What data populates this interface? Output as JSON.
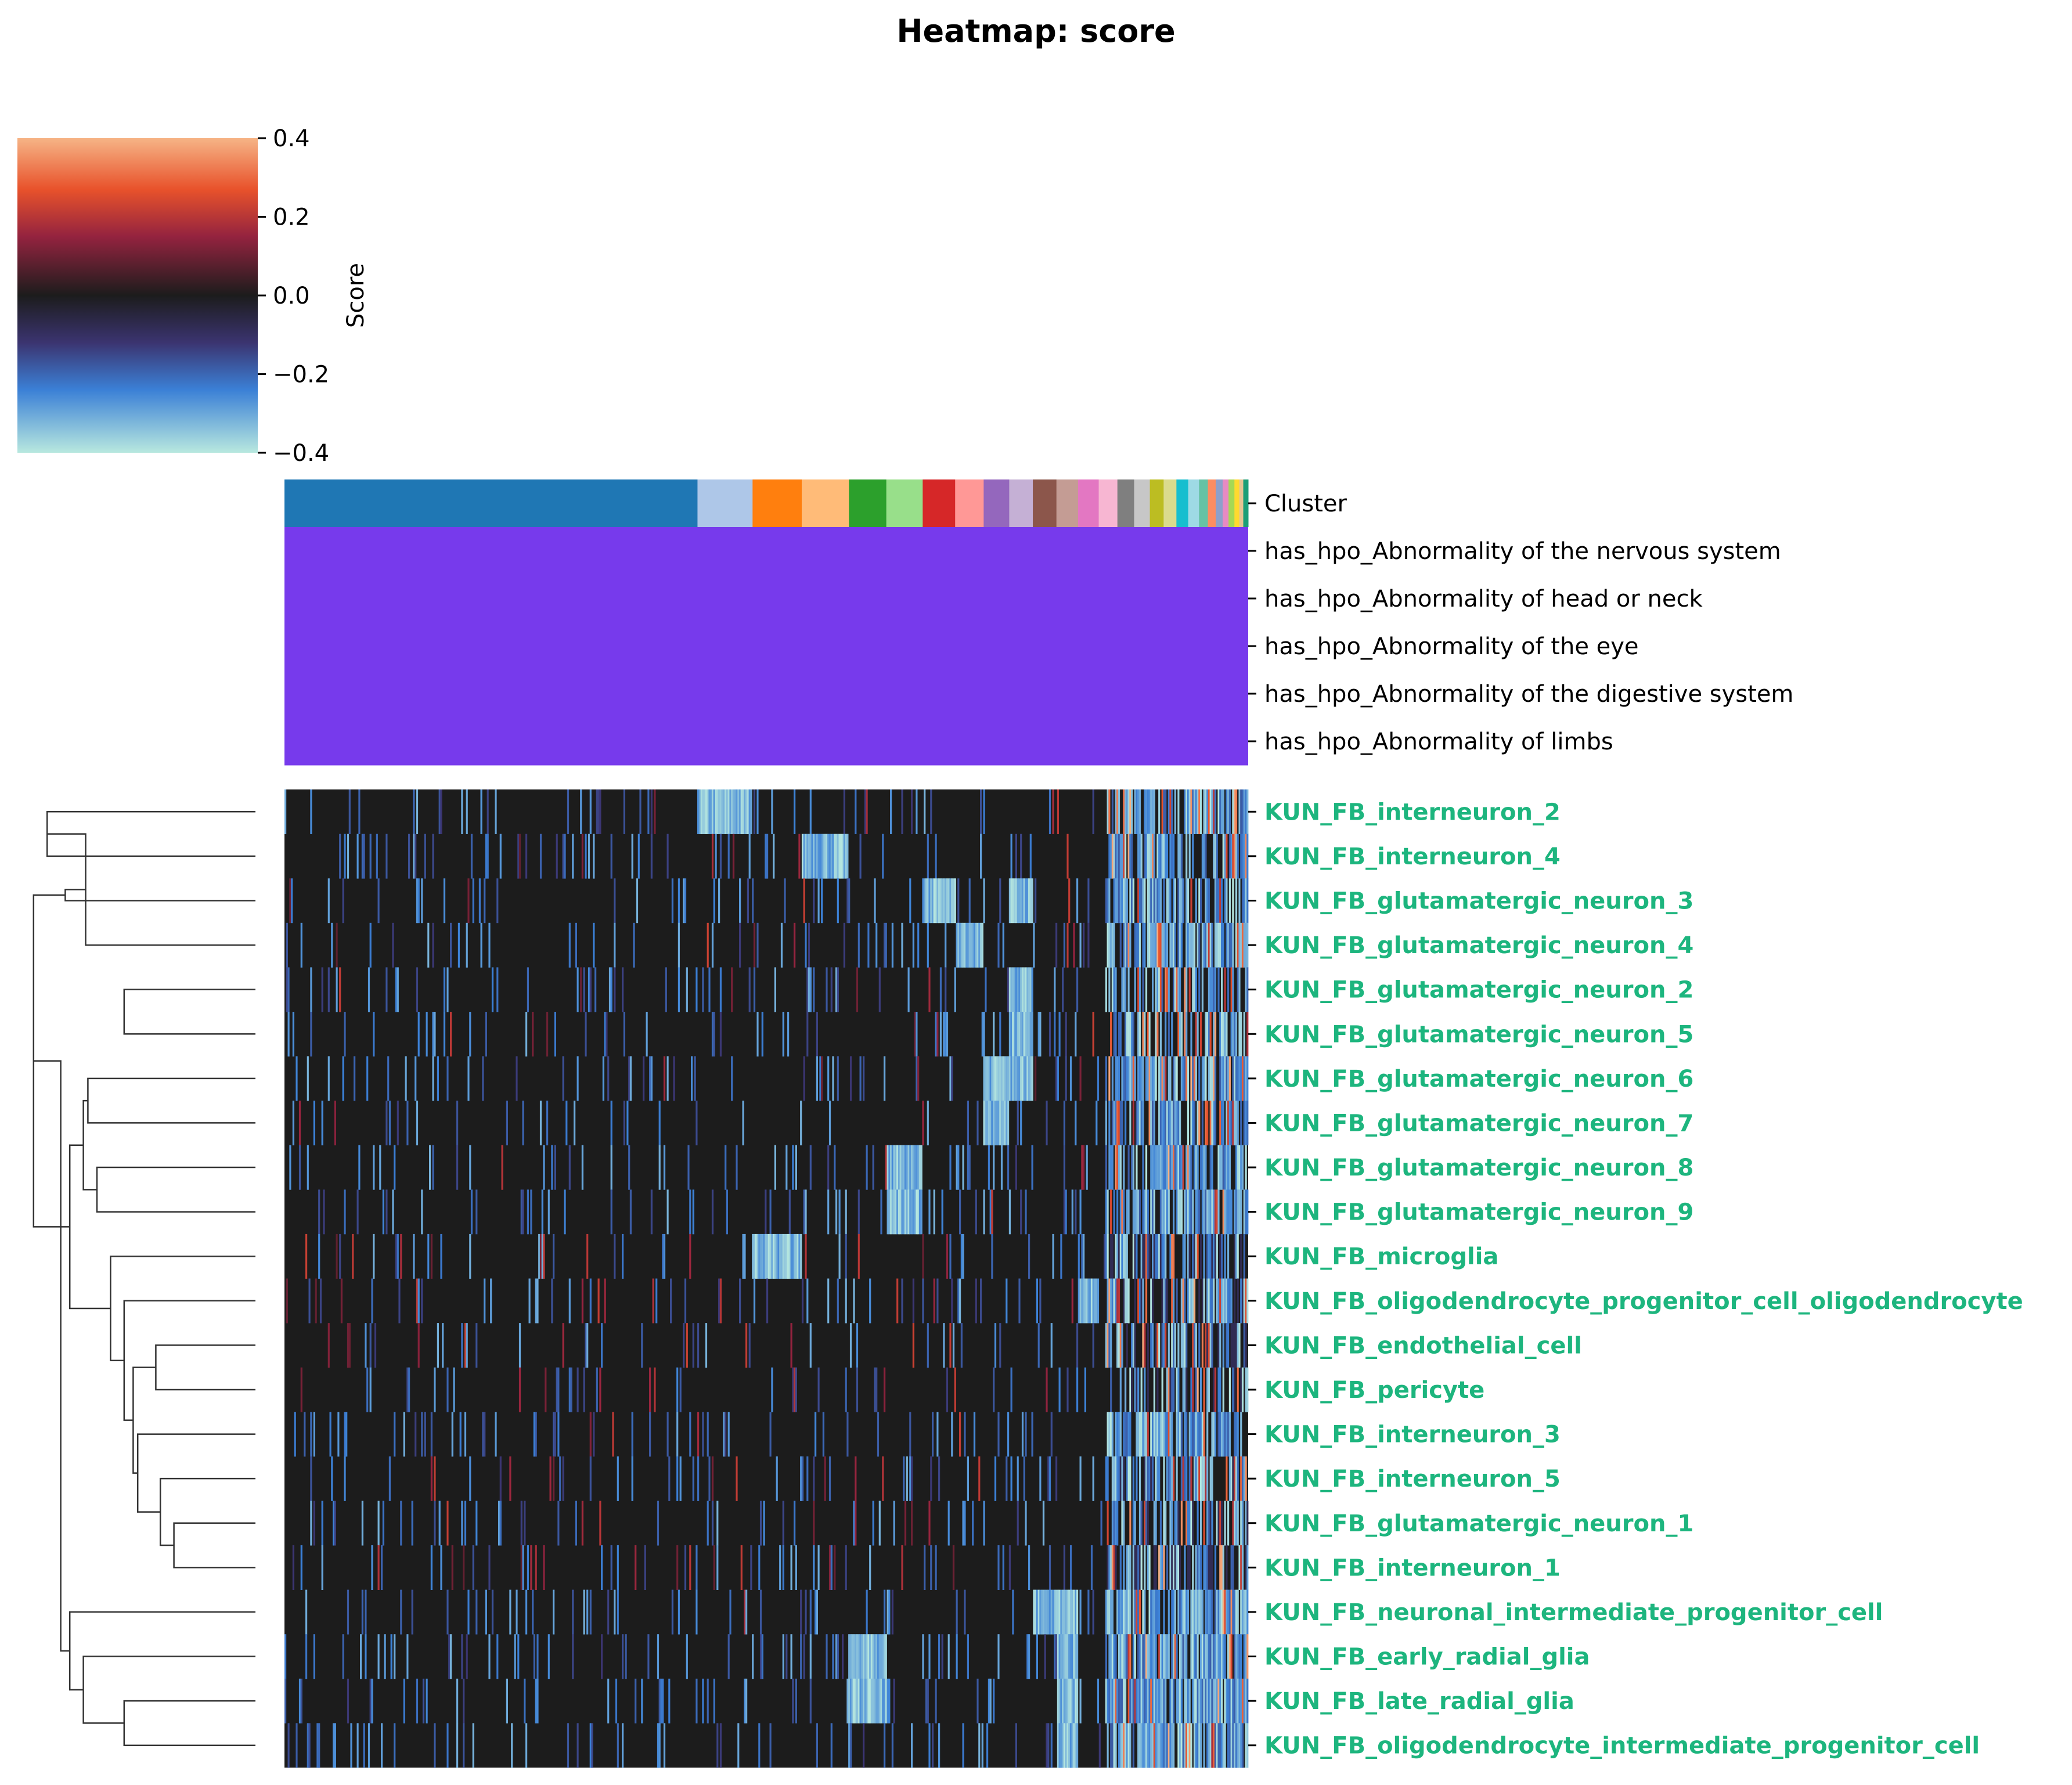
{
  "chart_data": {
    "type": "heatmap",
    "title": "Heatmap: score",
    "colorbar": {
      "label": "Score",
      "ticks": [
        "0.4",
        "0.2",
        "0.0",
        "−0.2",
        "−0.4"
      ],
      "range": [
        -0.4,
        0.4
      ],
      "stops": [
        {
          "value": 0.4,
          "color": "#f6b486"
        },
        {
          "value": 0.27,
          "color": "#e8522b"
        },
        {
          "value": 0.15,
          "color": "#94233f"
        },
        {
          "value": 0.0,
          "color": "#1c1c1c"
        },
        {
          "value": -0.12,
          "color": "#3b3470"
        },
        {
          "value": -0.24,
          "color": "#3b80d6"
        },
        {
          "value": -0.4,
          "color": "#b8e8df"
        }
      ]
    },
    "column_annotations": [
      {
        "name": "Cluster",
        "color_by": "cluster"
      },
      {
        "name": "has_hpo_Abnormality of the nervous system",
        "color": "#773aec"
      },
      {
        "name": "has_hpo_Abnormality of head or neck",
        "color": "#773aec"
      },
      {
        "name": "has_hpo_Abnormality of the eye",
        "color": "#773aec"
      },
      {
        "name": "has_hpo_Abnormality of the digestive system",
        "color": "#773aec"
      },
      {
        "name": "has_hpo_Abnormality of limbs",
        "color": "#773aec"
      }
    ],
    "clusters": [
      {
        "width": 0.42,
        "color": "#1f77b4"
      },
      {
        "width": 0.056,
        "color": "#aec7e8"
      },
      {
        "width": 0.05,
        "color": "#ff7f0e"
      },
      {
        "width": 0.048,
        "color": "#ffbb78"
      },
      {
        "width": 0.038,
        "color": "#2ca02c"
      },
      {
        "width": 0.037,
        "color": "#98df8a"
      },
      {
        "width": 0.033,
        "color": "#d62728"
      },
      {
        "width": 0.029,
        "color": "#ff9896"
      },
      {
        "width": 0.026,
        "color": "#9467bd"
      },
      {
        "width": 0.024,
        "color": "#c5b0d5"
      },
      {
        "width": 0.024,
        "color": "#8c564b"
      },
      {
        "width": 0.022,
        "color": "#c49c94"
      },
      {
        "width": 0.021,
        "color": "#e377c2"
      },
      {
        "width": 0.019,
        "color": "#f7b6d2"
      },
      {
        "width": 0.017,
        "color": "#7f7f7f"
      },
      {
        "width": 0.016,
        "color": "#c7c7c7"
      },
      {
        "width": 0.014,
        "color": "#bcbd22"
      },
      {
        "width": 0.013,
        "color": "#dbdb8d"
      },
      {
        "width": 0.012,
        "color": "#17becf"
      },
      {
        "width": 0.011,
        "color": "#9edae5"
      },
      {
        "width": 0.009,
        "color": "#66c2a5"
      },
      {
        "width": 0.008,
        "color": "#fc8d62"
      },
      {
        "width": 0.007,
        "color": "#8da0cb"
      },
      {
        "width": 0.006,
        "color": "#e78ac3"
      },
      {
        "width": 0.006,
        "color": "#a6d854"
      },
      {
        "width": 0.005,
        "color": "#ffd92f"
      },
      {
        "width": 0.004,
        "color": "#e5c494"
      },
      {
        "width": 0.005,
        "color": "#1b9e77"
      }
    ],
    "rows": [
      {
        "label": "KUN_FB_interneuron_2",
        "hot": [
          1
        ],
        "edge": 0.2
      },
      {
        "label": "KUN_FB_interneuron_4",
        "hot": [
          3
        ],
        "edge": 0.2
      },
      {
        "label": "KUN_FB_glutamatergic_neuron_3",
        "hot": [
          6,
          9
        ],
        "edge": 0.2
      },
      {
        "label": "KUN_FB_glutamatergic_neuron_4",
        "hot": [
          7
        ],
        "edge": 0.2
      },
      {
        "label": "KUN_FB_glutamatergic_neuron_2",
        "hot": [
          9
        ],
        "edge": 0.15
      },
      {
        "label": "KUN_FB_glutamatergic_neuron_5",
        "hot": [
          9
        ],
        "edge": 0.15
      },
      {
        "label": "KUN_FB_glutamatergic_neuron_6",
        "hot": [
          8,
          9
        ],
        "edge": 0.2
      },
      {
        "label": "KUN_FB_glutamatergic_neuron_7",
        "hot": [
          8
        ],
        "edge": 0.2
      },
      {
        "label": "KUN_FB_glutamatergic_neuron_8",
        "hot": [
          5
        ],
        "edge": 0.2
      },
      {
        "label": "KUN_FB_glutamatergic_neuron_9",
        "hot": [
          5
        ],
        "edge": 0.2
      },
      {
        "label": "KUN_FB_microglia",
        "hot": [
          2
        ],
        "edge": 0.05
      },
      {
        "label": "KUN_FB_oligodendrocyte_progenitor_cell_oligodendrocyte",
        "hot": [
          12
        ],
        "edge": 0.1
      },
      {
        "label": "KUN_FB_endothelial_cell",
        "hot": [],
        "edge": 0.05
      },
      {
        "label": "KUN_FB_pericyte",
        "hot": [],
        "edge": 0.05
      },
      {
        "label": "KUN_FB_interneuron_3",
        "hot": [],
        "edge": 0.2
      },
      {
        "label": "KUN_FB_interneuron_5",
        "hot": [],
        "edge": 0.1
      },
      {
        "label": "KUN_FB_glutamatergic_neuron_1",
        "hot": [],
        "edge": 0.1
      },
      {
        "label": "KUN_FB_interneuron_1",
        "hot": [],
        "edge": 0.05
      },
      {
        "label": "KUN_FB_neuronal_intermediate_progenitor_cell",
        "hot": [
          10,
          11
        ],
        "edge": 0.25
      },
      {
        "label": "KUN_FB_early_radial_glia",
        "hot": [
          4,
          11
        ],
        "edge": 0.3
      },
      {
        "label": "KUN_FB_late_radial_glia",
        "hot": [
          4,
          11
        ],
        "edge": 0.3
      },
      {
        "label": "KUN_FB_oligodendrocyte_intermediate_progenitor_cell",
        "hot": [
          11
        ],
        "edge": 0.3
      }
    ],
    "row_label_color": "#1db57e",
    "dendrogram": {
      "leaf_order": [
        0,
        1,
        2,
        3,
        4,
        5,
        6,
        7,
        8,
        9,
        10,
        11,
        12,
        13,
        14,
        15,
        16,
        17,
        18,
        19,
        20,
        21
      ],
      "merges": [
        [
          0,
          1,
          0.92
        ],
        [
          4,
          5,
          0.58
        ],
        [
          6,
          7,
          0.74
        ],
        [
          8,
          9,
          0.7
        ],
        [
          3,
          22,
          0.75
        ],
        [
          25,
          24,
          0.76
        ],
        [
          2,
          26,
          0.84
        ],
        [
          12,
          13,
          0.44
        ],
        [
          16,
          17,
          0.36
        ],
        [
          15,
          30,
          0.42
        ],
        [
          14,
          31,
          0.52
        ],
        [
          29,
          32,
          0.54
        ],
        [
          11,
          33,
          0.58
        ],
        [
          10,
          34,
          0.64
        ],
        [
          27,
          35,
          0.82
        ],
        [
          28,
          36,
          0.98
        ],
        [
          20,
          21,
          0.58
        ],
        [
          19,
          38,
          0.76
        ],
        [
          18,
          39,
          0.82
        ],
        [
          37,
          40,
          0.86
        ]
      ]
    }
  }
}
